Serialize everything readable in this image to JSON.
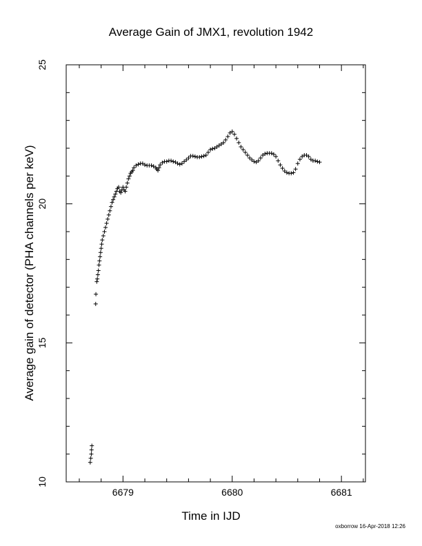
{
  "chart_data": {
    "type": "scatter",
    "title": "Average Gain of JMX1, revolution 1942",
    "xlabel": "Time in IJD",
    "ylabel": "Average gain of detector (PHA channels per keV)",
    "xlim": [
      6678.48,
      6681.22
    ],
    "ylim": [
      10,
      25
    ],
    "xticks": [
      6679,
      6680,
      6681
    ],
    "yticks": [
      10,
      15,
      20,
      25
    ],
    "xtick_labels": [
      "6679",
      "6680",
      "6681"
    ],
    "ytick_labels": [
      "10",
      "15",
      "20",
      "25"
    ],
    "grid": false,
    "marker": "+",
    "marker_color": "#000000",
    "points": [
      [
        6678.7,
        10.7
      ],
      [
        6678.705,
        10.85
      ],
      [
        6678.71,
        11.0
      ],
      [
        6678.712,
        11.15
      ],
      [
        6678.715,
        11.3
      ],
      [
        6678.75,
        16.4
      ],
      [
        6678.752,
        16.75
      ],
      [
        6678.76,
        17.2
      ],
      [
        6678.765,
        17.3
      ],
      [
        6678.77,
        17.45
      ],
      [
        6678.775,
        17.6
      ],
      [
        6678.78,
        17.8
      ],
      [
        6678.785,
        17.95
      ],
      [
        6678.79,
        18.1
      ],
      [
        6678.795,
        18.25
      ],
      [
        6678.8,
        18.4
      ],
      [
        6678.805,
        18.55
      ],
      [
        6678.81,
        18.7
      ],
      [
        6678.82,
        18.85
      ],
      [
        6678.83,
        19.0
      ],
      [
        6678.84,
        19.15
      ],
      [
        6678.85,
        19.3
      ],
      [
        6678.86,
        19.45
      ],
      [
        6678.87,
        19.6
      ],
      [
        6678.88,
        19.75
      ],
      [
        6678.89,
        19.9
      ],
      [
        6678.9,
        20.05
      ],
      [
        6678.91,
        20.15
      ],
      [
        6678.92,
        20.25
      ],
      [
        6678.93,
        20.35
      ],
      [
        6678.94,
        20.45
      ],
      [
        6678.95,
        20.55
      ],
      [
        6678.96,
        20.6
      ],
      [
        6678.97,
        20.45
      ],
      [
        6678.98,
        20.4
      ],
      [
        6678.99,
        20.5
      ],
      [
        6679.0,
        20.6
      ],
      [
        6679.01,
        20.5
      ],
      [
        6679.02,
        20.45
      ],
      [
        6679.03,
        20.6
      ],
      [
        6679.04,
        20.75
      ],
      [
        6679.05,
        20.9
      ],
      [
        6679.06,
        21.0
      ],
      [
        6679.07,
        21.1
      ],
      [
        6679.08,
        21.15
      ],
      [
        6679.09,
        21.2
      ],
      [
        6679.1,
        21.3
      ],
      [
        6679.12,
        21.38
      ],
      [
        6679.14,
        21.42
      ],
      [
        6679.16,
        21.45
      ],
      [
        6679.18,
        21.45
      ],
      [
        6679.2,
        21.4
      ],
      [
        6679.22,
        21.38
      ],
      [
        6679.24,
        21.38
      ],
      [
        6679.26,
        21.38
      ],
      [
        6679.28,
        21.35
      ],
      [
        6679.3,
        21.3
      ],
      [
        6679.31,
        21.25
      ],
      [
        6679.32,
        21.2
      ],
      [
        6679.33,
        21.3
      ],
      [
        6679.34,
        21.4
      ],
      [
        6679.36,
        21.48
      ],
      [
        6679.38,
        21.52
      ],
      [
        6679.4,
        21.52
      ],
      [
        6679.42,
        21.55
      ],
      [
        6679.44,
        21.55
      ],
      [
        6679.46,
        21.52
      ],
      [
        6679.48,
        21.5
      ],
      [
        6679.5,
        21.45
      ],
      [
        6679.52,
        21.42
      ],
      [
        6679.54,
        21.45
      ],
      [
        6679.56,
        21.52
      ],
      [
        6679.58,
        21.58
      ],
      [
        6679.6,
        21.65
      ],
      [
        6679.62,
        21.72
      ],
      [
        6679.64,
        21.72
      ],
      [
        6679.66,
        21.7
      ],
      [
        6679.68,
        21.68
      ],
      [
        6679.7,
        21.68
      ],
      [
        6679.72,
        21.7
      ],
      [
        6679.74,
        21.72
      ],
      [
        6679.76,
        21.75
      ],
      [
        6679.78,
        21.85
      ],
      [
        6679.8,
        21.95
      ],
      [
        6679.82,
        21.98
      ],
      [
        6679.84,
        22.0
      ],
      [
        6679.86,
        22.05
      ],
      [
        6679.88,
        22.1
      ],
      [
        6679.9,
        22.15
      ],
      [
        6679.92,
        22.2
      ],
      [
        6679.94,
        22.3
      ],
      [
        6679.96,
        22.42
      ],
      [
        6679.98,
        22.55
      ],
      [
        6680.0,
        22.6
      ],
      [
        6680.02,
        22.5
      ],
      [
        6680.04,
        22.35
      ],
      [
        6680.06,
        22.2
      ],
      [
        6680.08,
        22.05
      ],
      [
        6680.1,
        21.95
      ],
      [
        6680.12,
        21.85
      ],
      [
        6680.14,
        21.75
      ],
      [
        6680.16,
        21.65
      ],
      [
        6680.18,
        21.58
      ],
      [
        6680.2,
        21.52
      ],
      [
        6680.22,
        21.5
      ],
      [
        6680.24,
        21.55
      ],
      [
        6680.26,
        21.65
      ],
      [
        6680.28,
        21.75
      ],
      [
        6680.3,
        21.8
      ],
      [
        6680.32,
        21.82
      ],
      [
        6680.34,
        21.82
      ],
      [
        6680.36,
        21.82
      ],
      [
        6680.38,
        21.78
      ],
      [
        6680.4,
        21.7
      ],
      [
        6680.42,
        21.55
      ],
      [
        6680.44,
        21.4
      ],
      [
        6680.46,
        21.28
      ],
      [
        6680.48,
        21.18
      ],
      [
        6680.5,
        21.12
      ],
      [
        6680.52,
        21.1
      ],
      [
        6680.54,
        21.1
      ],
      [
        6680.56,
        21.12
      ],
      [
        6680.58,
        21.25
      ],
      [
        6680.6,
        21.45
      ],
      [
        6680.62,
        21.6
      ],
      [
        6680.64,
        21.7
      ],
      [
        6680.66,
        21.75
      ],
      [
        6680.68,
        21.75
      ],
      [
        6680.7,
        21.7
      ],
      [
        6680.72,
        21.6
      ],
      [
        6680.74,
        21.55
      ],
      [
        6680.76,
        21.55
      ],
      [
        6680.78,
        21.52
      ],
      [
        6680.8,
        21.5
      ]
    ]
  },
  "footer": {
    "credit": "oxborrow 16-Apr-2018 12:26"
  }
}
